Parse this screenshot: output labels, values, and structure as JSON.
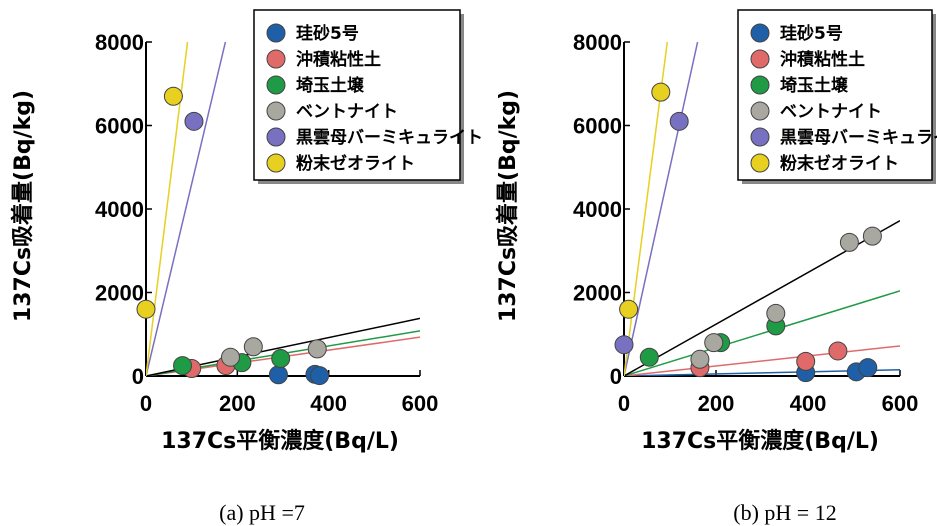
{
  "chart_data": [
    {
      "type": "scatter",
      "caption": "(a) pH =7",
      "xlabel": "137Cs平衡濃度(Bq/L)",
      "ylabel": "137Cs吸着量(Bq/kg)",
      "xlim": [
        0,
        600
      ],
      "ylim": [
        0,
        8000
      ],
      "xticks": [
        "0",
        "200",
        "400",
        "600"
      ],
      "yticks": [
        "0",
        "2000",
        "4000",
        "6000",
        "8000"
      ],
      "legend_position": "top-right",
      "series": [
        {
          "name": "珪砂5号",
          "color": "#1f5fa8",
          "x": [
            290,
            370,
            380
          ],
          "y": [
            30,
            40,
            10
          ],
          "fit_slope": null
        },
        {
          "name": "沖積粘性土",
          "color": "#e06a6a",
          "x": [
            100,
            175
          ],
          "y": [
            180,
            250
          ],
          "fit_slope": 1.55
        },
        {
          "name": "埼玉土壌",
          "color": "#1f9a45",
          "x": [
            80,
            210,
            295
          ],
          "y": [
            250,
            320,
            420
          ],
          "fit_slope": 1.8
        },
        {
          "name": "ベントナイト",
          "color": "#a8a8a0",
          "x": [
            185,
            235,
            375
          ],
          "y": [
            450,
            700,
            650
          ],
          "fit_slope": 2.3
        },
        {
          "name": "黒雲母バーミキュライト",
          "color": "#7870c0",
          "x": [
            105
          ],
          "y": [
            6100
          ],
          "fit_slope": 46
        },
        {
          "name": "粉末ゼオライト",
          "color": "#e8d020",
          "x": [
            0,
            60
          ],
          "y": [
            1600,
            6700
          ],
          "fit_slope": 88
        }
      ]
    },
    {
      "type": "scatter",
      "caption": "(b) pH = 12",
      "xlabel": "137Cs平衡濃度(Bq/L)",
      "ylabel": "137Cs吸着量(Bq/kg)",
      "xlim": [
        0,
        600
      ],
      "ylim": [
        0,
        8000
      ],
      "xticks": [
        "0",
        "200",
        "400",
        "600"
      ],
      "yticks": [
        "0",
        "2000",
        "4000",
        "6000",
        "8000"
      ],
      "legend_position": "top-right",
      "series": [
        {
          "name": "珪砂5号",
          "color": "#1f5fa8",
          "x": [
            395,
            505,
            530
          ],
          "y": [
            80,
            100,
            200
          ],
          "fit_slope": 0.25
        },
        {
          "name": "沖積粘性土",
          "color": "#e06a6a",
          "x": [
            165,
            395,
            465
          ],
          "y": [
            200,
            350,
            600
          ],
          "fit_slope": 1.2
        },
        {
          "name": "埼玉土壌",
          "color": "#1f9a45",
          "x": [
            55,
            210,
            330
          ],
          "y": [
            450,
            800,
            1200
          ],
          "fit_slope": 3.4
        },
        {
          "name": "ベントナイト",
          "color": "#a8a8a0",
          "x": [
            165,
            195,
            330,
            490,
            540
          ],
          "y": [
            400,
            800,
            1500,
            3200,
            3350
          ],
          "fit_slope": 6.2
        },
        {
          "name": "黒雲母バーミキュライト",
          "color": "#7870c0",
          "x": [
            0,
            120
          ],
          "y": [
            750,
            6100
          ],
          "fit_slope": 50
        },
        {
          "name": "粉末ゼオライト",
          "color": "#e8d020",
          "x": [
            10,
            80
          ],
          "y": [
            1600,
            6800
          ],
          "fit_slope": 85
        }
      ]
    }
  ]
}
